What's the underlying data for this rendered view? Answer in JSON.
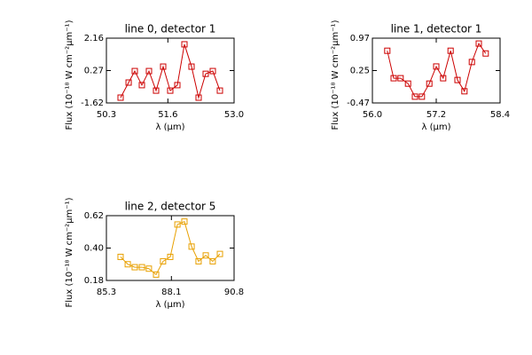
{
  "chart_data": [
    {
      "type": "line",
      "title": "line 0, detector 1",
      "xlabel": "λ (μm)",
      "ylabel": "Flux (10⁻¹⁸ W cm⁻²μm⁻¹)",
      "color": "#cc0000",
      "x": [
        50.6,
        50.77,
        50.9,
        51.05,
        51.2,
        51.35,
        51.5,
        51.65,
        51.8,
        51.95,
        52.1,
        52.25,
        52.4,
        52.55,
        52.7
      ],
      "values": [
        -1.31,
        -0.43,
        0.24,
        -0.58,
        0.24,
        -0.9,
        0.5,
        -0.9,
        -0.58,
        1.8,
        0.5,
        -1.31,
        0.08,
        0.24,
        -0.9
      ],
      "xlim": [
        50.3,
        53.0
      ],
      "xticks": [
        50.3,
        51.6,
        {
          "value": 53.0,
          "label": "53.0"
        }
      ],
      "ylim": [
        -1.62,
        2.16
      ],
      "yticks": [
        -1.62,
        0.27,
        2.16
      ]
    },
    {
      "type": "line",
      "title": "line 1, detector 1",
      "xlabel": "λ (μm)",
      "ylabel": "Flux (10⁻¹⁸ W cm⁻²μm⁻¹)",
      "color": "#cc0000",
      "x": [
        56.28,
        56.4,
        56.53,
        56.67,
        56.8,
        56.93,
        57.07,
        57.2,
        57.33,
        57.47,
        57.6,
        57.73,
        57.87,
        58.0,
        58.13
      ],
      "values": [
        0.69,
        0.08,
        0.08,
        -0.04,
        -0.33,
        -0.33,
        -0.04,
        0.34,
        0.08,
        0.69,
        0.04,
        -0.21,
        0.44,
        0.85,
        0.63
      ],
      "xlim": [
        56.0,
        58.4
      ],
      "xticks": [
        {
          "value": 56.0,
          "label": "56.0"
        },
        57.2,
        58.4
      ],
      "ylim": [
        -0.47,
        0.97
      ],
      "yticks": [
        -0.47,
        0.25,
        0.97
      ]
    },
    {
      "type": "line",
      "title": "line 2, detector 5",
      "xlabel": "λ (μm)",
      "ylabel": "Flux (10⁻¹⁸ W cm⁻²μm⁻¹)",
      "color": "#e8a000",
      "x": [
        85.91,
        86.22,
        86.52,
        86.83,
        87.13,
        87.44,
        87.74,
        88.05,
        88.36,
        88.66,
        88.97,
        89.27,
        89.58,
        89.88,
        90.19
      ],
      "values": [
        0.34,
        0.29,
        0.27,
        0.27,
        0.26,
        0.22,
        0.31,
        0.34,
        0.56,
        0.58,
        0.41,
        0.31,
        0.35,
        0.31,
        0.36
      ],
      "xlim": [
        85.3,
        90.8
      ],
      "xticks": [
        85.3,
        88.1,
        90.8
      ],
      "ylim": [
        0.18,
        0.62
      ],
      "yticks": [
        0.18,
        {
          "value": 0.4,
          "label": "0.40"
        },
        0.62
      ]
    }
  ]
}
